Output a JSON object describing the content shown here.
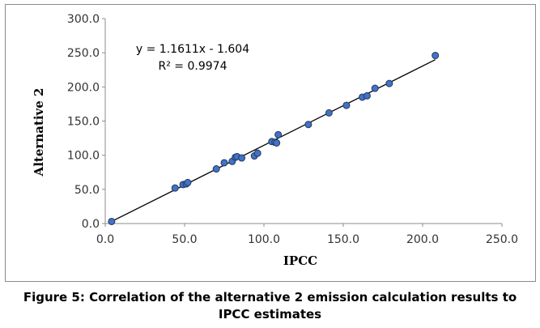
{
  "chart_data": {
    "type": "scatter",
    "title": "",
    "xlabel": "IPCC",
    "ylabel": "Alternative 2",
    "xlim": [
      0,
      250
    ],
    "ylim": [
      0,
      300
    ],
    "x_ticks": [
      "0.0",
      "50.0",
      "100.0",
      "150.0",
      "200.0",
      "250.0"
    ],
    "y_ticks": [
      "0.0",
      "50.0",
      "100.0",
      "150.0",
      "200.0",
      "250.0",
      "300.0"
    ],
    "grid": false,
    "legend": "none",
    "point_color": "#4472c4",
    "series": [
      {
        "points": [
          [
            4,
            3
          ],
          [
            44,
            52
          ],
          [
            49,
            57
          ],
          [
            51,
            58
          ],
          [
            52,
            60
          ],
          [
            70,
            80
          ],
          [
            75,
            89
          ],
          [
            80,
            91
          ],
          [
            82,
            97
          ],
          [
            83,
            98
          ],
          [
            86,
            96
          ],
          [
            94,
            99
          ],
          [
            96,
            103
          ],
          [
            105,
            120
          ],
          [
            107,
            119
          ],
          [
            108,
            118
          ],
          [
            109,
            130
          ],
          [
            128,
            145
          ],
          [
            141,
            162
          ],
          [
            152,
            173
          ],
          [
            162,
            185
          ],
          [
            165,
            187
          ],
          [
            170,
            198
          ],
          [
            179,
            205
          ],
          [
            208,
            246
          ]
        ]
      }
    ],
    "trendline": {
      "slope": 1.1611,
      "intercept": -1.604,
      "x_range": [
        4,
        208
      ],
      "equation": "y = 1.1611x - 1.604",
      "r_squared": "R² = 0.9974"
    }
  },
  "caption": {
    "line1": "Figure 5: Correlation of the alternative 2 emission calculation results to",
    "line2": "IPCC estimates"
  }
}
